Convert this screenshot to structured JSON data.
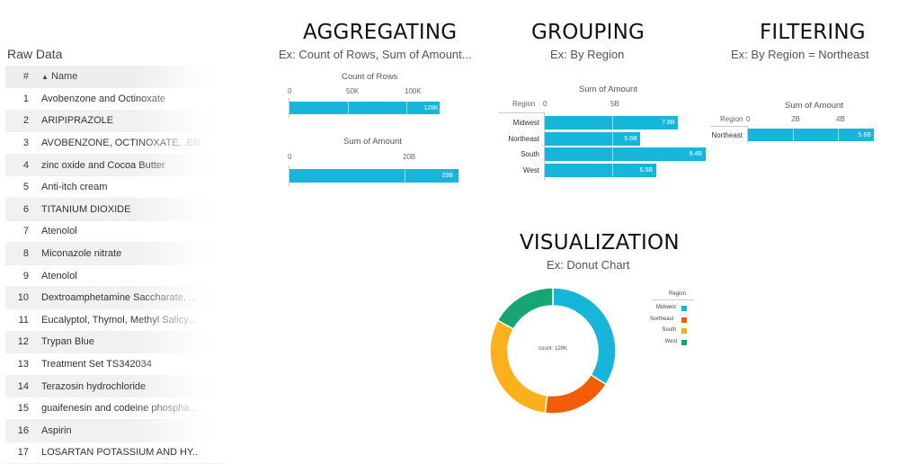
{
  "raw_data": {
    "title": "Raw Data",
    "columns": [
      "#",
      "Name"
    ],
    "sort_icon": "sort-arrows-icon",
    "rows": [
      {
        "num": "1",
        "name": "Avobenzone and Octinoxate"
      },
      {
        "num": "2",
        "name": "ARIPIPRAZOLE"
      },
      {
        "num": "3",
        "name": "AVOBENZONE, OCTINOXATE, .ENS"
      },
      {
        "num": "4",
        "name": "zinc oxide and Cocoa Butter"
      },
      {
        "num": "5",
        "name": "Anti-itch cream"
      },
      {
        "num": "6",
        "name": "TITANIUM DIOXIDE"
      },
      {
        "num": "7",
        "name": "Atenolol"
      },
      {
        "num": "8",
        "name": "Miconazole nitrate"
      },
      {
        "num": "9",
        "name": "Atenolol"
      },
      {
        "num": "10",
        "name": "Dextroamphetamine Saccharate, ..."
      },
      {
        "num": "11",
        "name": "Eucalyptol, Thymol, Methyl Salicy..."
      },
      {
        "num": "12",
        "name": "Trypan Blue"
      },
      {
        "num": "13",
        "name": "Treatment Set TS342034"
      },
      {
        "num": "14",
        "name": "Terazosin hydrochloride"
      },
      {
        "num": "15",
        "name": "guaifenesin and codeine phospha..."
      },
      {
        "num": "16",
        "name": "Aspirin"
      },
      {
        "num": "17",
        "name": "LOSARTAN POTASSIUM AND HY.."
      }
    ]
  },
  "aggregating": {
    "heading": "AGGREGATING",
    "subtitle": "Ex: Count of Rows, Sum of Amount..."
  },
  "grouping": {
    "heading": "GROUPING",
    "subtitle": "Ex: By Region"
  },
  "filtering": {
    "heading": "FILTERING",
    "subtitle": "Ex: By Region = Northeast"
  },
  "visualization": {
    "heading": "VISUALIZATION",
    "subtitle": "Ex: Donut Chart"
  },
  "colors": {
    "bar": "#16b5d9",
    "midwest": "#16b5d9",
    "northeast": "#f25c05",
    "south": "#fbb11b",
    "west": "#17a673"
  },
  "chart_data": [
    {
      "type": "bar",
      "title": "Count of Rows",
      "tick_labels": [
        "0",
        "50K",
        "100K"
      ],
      "categories": [
        ""
      ],
      "values": [
        128000
      ],
      "data_labels": [
        "128K"
      ],
      "xlim": [
        0,
        130000
      ]
    },
    {
      "type": "bar",
      "title": "Sum of Amount",
      "tick_labels": [
        "0",
        "20B"
      ],
      "categories": [
        ""
      ],
      "values": [
        29000000000
      ],
      "data_labels": [
        "29B"
      ],
      "xlim": [
        0,
        30000000000
      ]
    },
    {
      "type": "bar",
      "title": "Sum of Amount",
      "category_header": "Region",
      "tick_labels": [
        "0",
        "5B"
      ],
      "categories": [
        "Midwest",
        "Northeast",
        "South",
        "West"
      ],
      "values": [
        7800000000,
        5600000000,
        9400000000,
        6500000000
      ],
      "data_labels": [
        "7.8B",
        "5.6B",
        "9.4B",
        "6.5B"
      ],
      "xlim": [
        0,
        10000000000
      ]
    },
    {
      "type": "bar",
      "title": "Sum of Amount",
      "category_header": "Region",
      "tick_labels": [
        "0",
        "2B",
        "4B"
      ],
      "categories": [
        "Northeast"
      ],
      "values": [
        5600000000
      ],
      "data_labels": [
        "5.6B"
      ],
      "xlim": [
        0,
        5700000000
      ]
    },
    {
      "type": "pie",
      "center_label": "count: 128K",
      "legend_title": "Region",
      "legend_position": "right",
      "categories": [
        "Midwest",
        "Northeast",
        "South",
        "West"
      ],
      "values": [
        34,
        18,
        31,
        17
      ]
    }
  ]
}
